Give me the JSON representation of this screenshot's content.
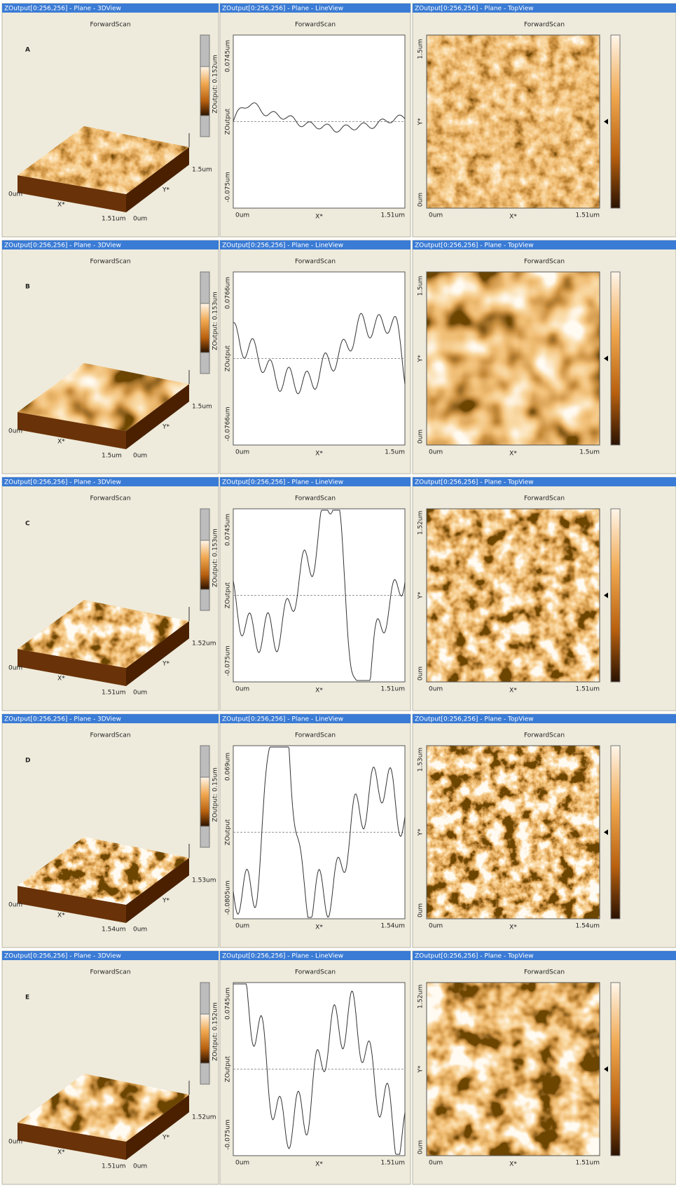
{
  "rows": [
    {
      "letter": "A",
      "view3d": {
        "title_bar": "ZOutput[0:256,256] - Plane - 3DView",
        "scan": "ForwardScan",
        "colorbar_label": "ZOutput: 0.152um",
        "x_start": "0um",
        "x_axis": "X*",
        "x_end": "1.51um",
        "y_start": "0um",
        "y_axis": "Y*",
        "y_end": "1.5um"
      },
      "line": {
        "title_bar": "ZOutput[0:256,256] - Plane - LineView",
        "scan": "ForwardScan",
        "y_top": "0.0745um",
        "y_axis": "ZOutput",
        "y_bottom": "-0.075um",
        "x_start": "0um",
        "x_axis": "X*",
        "x_end": "1.51um"
      },
      "top": {
        "title_bar": "ZOutput[0:256,256] - Plane - TopView",
        "scan": "ForwardScan",
        "y_top": "1.5um",
        "y_axis": "Y*",
        "y_bottom": "0um",
        "x_start": "0um",
        "x_axis": "X*",
        "x_end": "1.51um"
      }
    },
    {
      "letter": "B",
      "view3d": {
        "title_bar": "ZOutput[0:256,256] - Plane - 3DView",
        "scan": "ForwardScan",
        "colorbar_label": "ZOutput: 0.153um",
        "x_start": "0um",
        "x_axis": "X*",
        "x_end": "1.5um",
        "y_start": "0um",
        "y_axis": "Y*",
        "y_end": "1.5um"
      },
      "line": {
        "title_bar": "ZOutput[0:256,256] - Plane - LineView",
        "scan": "ForwardScan",
        "y_top": "0.0766um",
        "y_axis": "ZOutput",
        "y_bottom": "-0.0766um",
        "x_start": "0um",
        "x_axis": "X*",
        "x_end": "1.5um"
      },
      "top": {
        "title_bar": "ZOutput[0:256,256] - Plane - TopView",
        "scan": "ForwardScan",
        "y_top": "1.5um",
        "y_axis": "Y*",
        "y_bottom": "0um",
        "x_start": "0um",
        "x_axis": "X*",
        "x_end": "1.5um"
      }
    },
    {
      "letter": "C",
      "view3d": {
        "title_bar": "ZOutput[0:256,256] - Plane - 3DView",
        "scan": "ForwardScan",
        "colorbar_label": "ZOutput: 0.153um",
        "x_start": "0um",
        "x_axis": "X*",
        "x_end": "1.51um",
        "y_start": "0um",
        "y_axis": "Y*",
        "y_end": "1.52um"
      },
      "line": {
        "title_bar": "ZOutput[0:256,256] - Plane - LineView",
        "scan": "ForwardScan",
        "y_top": "0.0745um",
        "y_axis": "ZOutput",
        "y_bottom": "-0.075um",
        "x_start": "0um",
        "x_axis": "X*",
        "x_end": "1.51um"
      },
      "top": {
        "title_bar": "ZOutput[0:256,256] - Plane - TopView",
        "scan": "ForwardScan",
        "y_top": "1.52um",
        "y_axis": "Y*",
        "y_bottom": "0um",
        "x_start": "0um",
        "x_axis": "X*",
        "x_end": "1.51um"
      }
    },
    {
      "letter": "D",
      "view3d": {
        "title_bar": "ZOutput[0:256,256] - Plane - 3DView",
        "scan": "ForwardScan",
        "colorbar_label": "ZOutput: 0.15um",
        "x_start": "0um",
        "x_axis": "X*",
        "x_end": "1.54um",
        "y_start": "0um",
        "y_axis": "Y*",
        "y_end": "1.53um"
      },
      "line": {
        "title_bar": "ZOutput[0:256,256] - Plane - LineView",
        "scan": "ForwardScan",
        "y_top": "0.069um",
        "y_axis": "ZOutput",
        "y_bottom": "-0.0805um",
        "x_start": "0um",
        "x_axis": "X*",
        "x_end": "1.54um"
      },
      "top": {
        "title_bar": "ZOutput[0:256,256] - Plane - TopView",
        "scan": "ForwardScan",
        "y_top": "1.53um",
        "y_axis": "Y*",
        "y_bottom": "0um",
        "x_start": "0um",
        "x_axis": "X*",
        "x_end": "1.54um"
      }
    },
    {
      "letter": "E",
      "view3d": {
        "title_bar": "ZOutput[0:256,256] - Plane - 3DView",
        "scan": "ForwardScan",
        "colorbar_label": "ZOutput: 0.152um",
        "x_start": "0um",
        "x_axis": "X*",
        "x_end": "1.51um",
        "y_start": "0um",
        "y_axis": "Y*",
        "y_end": "1.52um"
      },
      "line": {
        "title_bar": "ZOutput[0:256,256] - Plane - LineView",
        "scan": "ForwardScan",
        "y_top": "0.0745um",
        "y_axis": "ZOutput",
        "y_bottom": "-0.075um",
        "x_start": "0um",
        "x_axis": "X*",
        "x_end": "1.51um"
      },
      "top": {
        "title_bar": "ZOutput[0:256,256] - Plane - TopView",
        "scan": "ForwardScan",
        "y_top": "1.52um",
        "y_axis": "Y*",
        "y_bottom": "0um",
        "x_start": "0um",
        "x_axis": "X*",
        "x_end": "1.51um"
      }
    }
  ]
}
